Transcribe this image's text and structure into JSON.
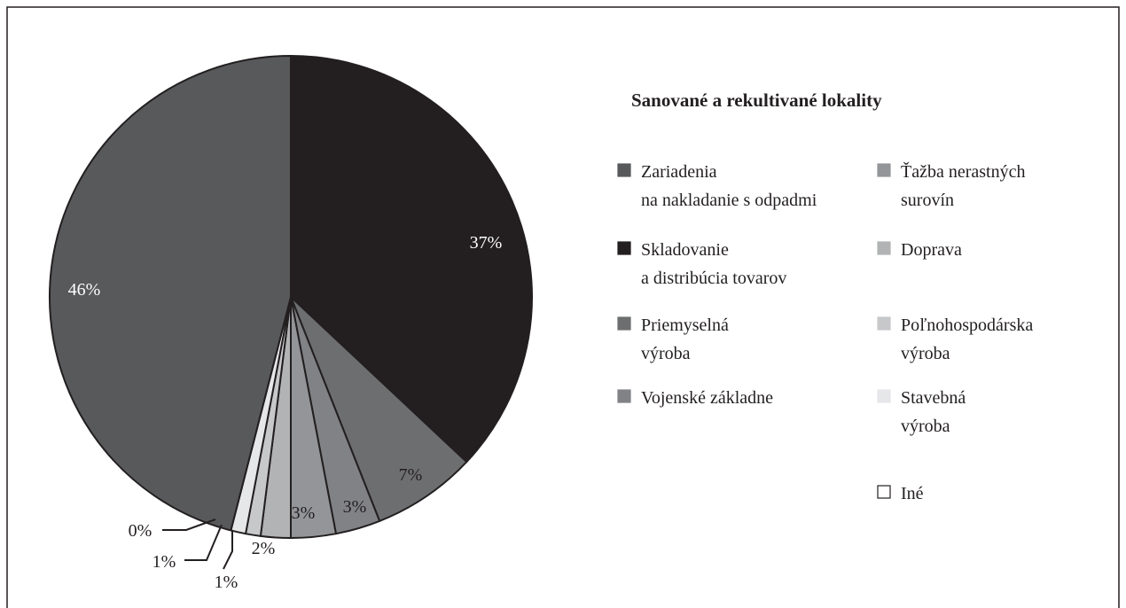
{
  "chart_data": {
    "type": "pie",
    "title": "Sanované a rekultivané lokality",
    "labels": [
      [
        "Skladovanie",
        "a distribúcia tovarov"
      ],
      [
        "Priemyselná",
        "výroba"
      ],
      [
        "Vojenské základne"
      ],
      [
        "Ťažba nerastných",
        "surovín"
      ],
      [
        "Doprava"
      ],
      [
        "Poľnohospodárska",
        "výroba"
      ],
      [
        "Stavebná",
        "výroba"
      ],
      [
        "Iné"
      ],
      [
        "Zariadenia",
        "na nakladanie s odpadmi"
      ]
    ],
    "values": [
      37,
      7,
      3,
      3,
      2,
      1,
      1,
      0,
      46
    ],
    "value_labels": [
      "37%",
      "7%",
      "3%",
      "3%",
      "2%",
      "1%",
      "1%",
      "0%",
      "46%"
    ],
    "colors": [
      "#231f20",
      "#6d6e70",
      "#808285",
      "#939598",
      "#b2b3b5",
      "#c7c8ca",
      "#e6e7e8",
      "#ffffff",
      "#58595b"
    ]
  }
}
